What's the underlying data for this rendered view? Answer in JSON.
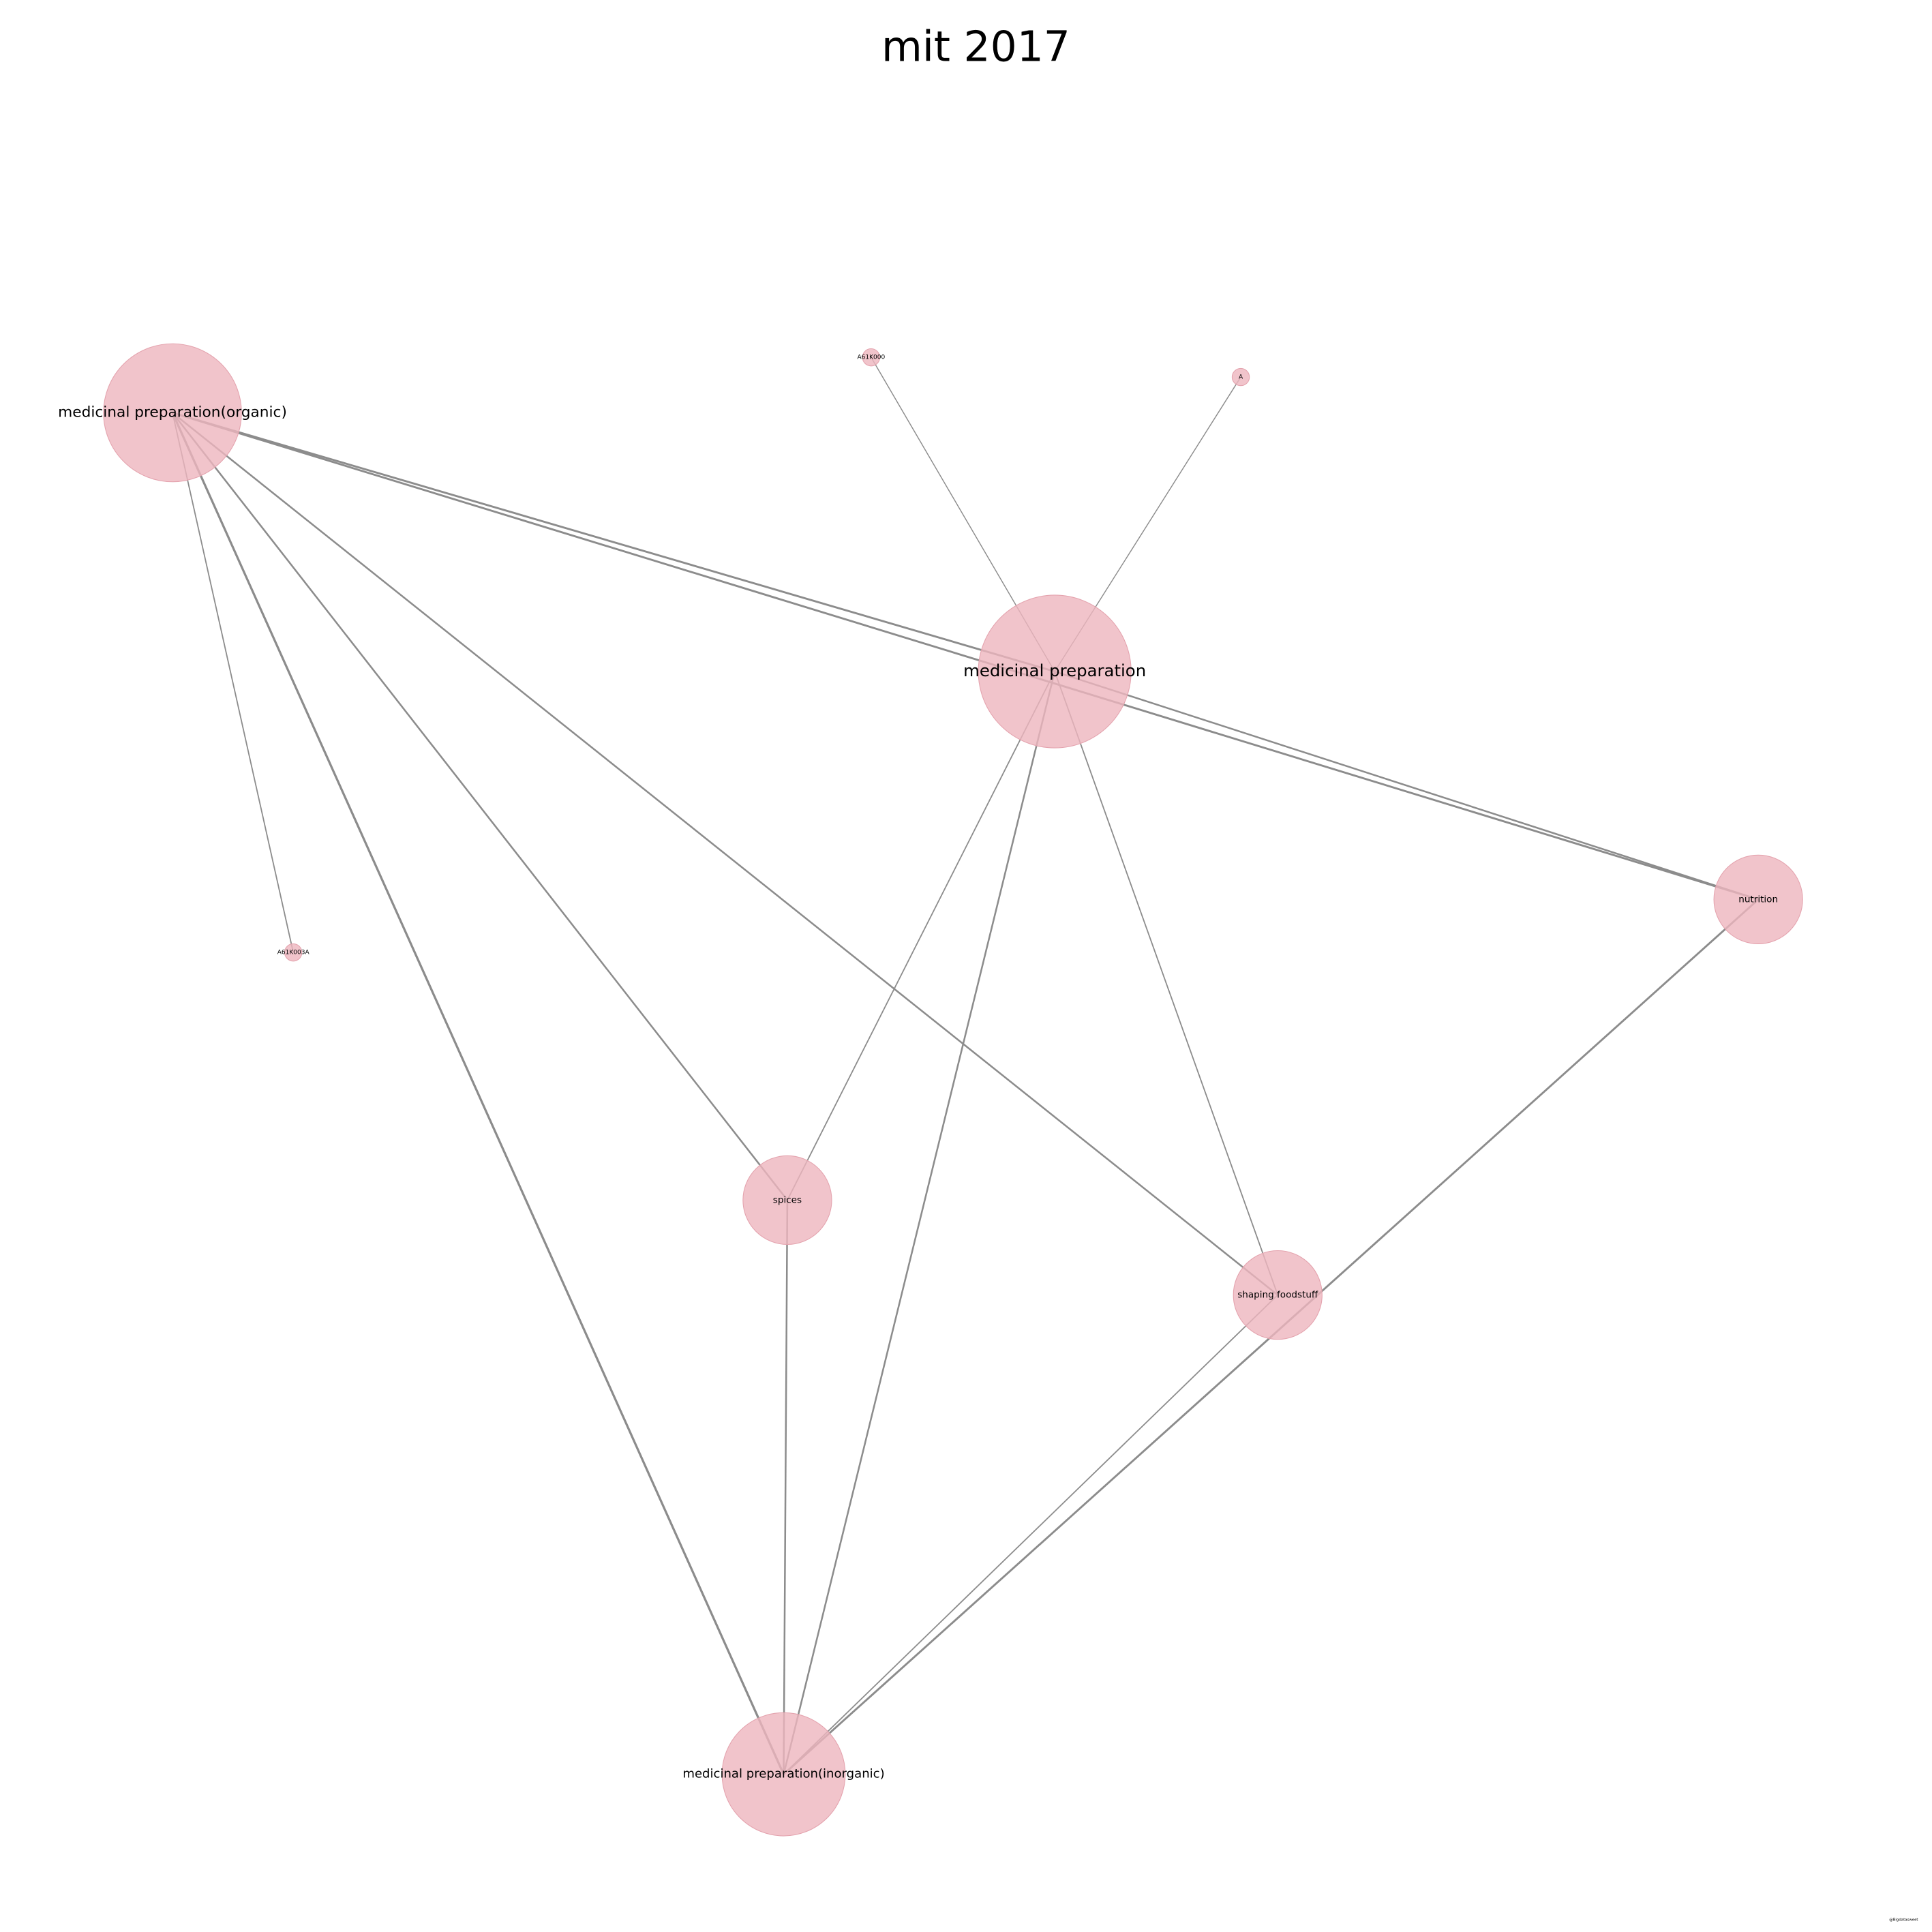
{
  "title": "mit 2017",
  "nodes": [
    {
      "label": "medicinal preparation(organic)"
    },
    {
      "label": "medicinal preparation"
    },
    {
      "label": "A61K000"
    },
    {
      "label": "A"
    },
    {
      "label": "A61K003A"
    },
    {
      "label": "nutrition"
    },
    {
      "label": "spices"
    },
    {
      "label": "shaping foodstuff"
    },
    {
      "label": "medicinal preparation(inorganic)"
    }
  ],
  "watermark": "@Bigdatasweet"
}
